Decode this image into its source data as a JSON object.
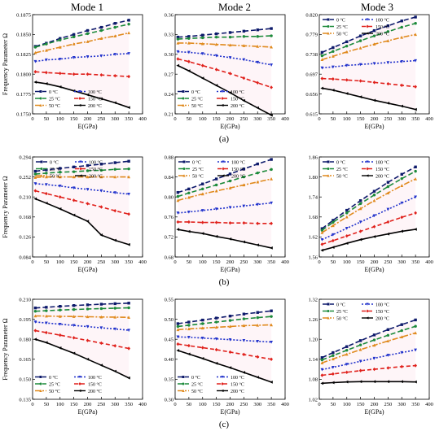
{
  "figure": {
    "mode_titles": [
      "Mode 1",
      "Mode 2",
      "Mode 3"
    ],
    "row_labels": [
      "(a)",
      "(b)",
      "(c)"
    ]
  },
  "chart_data": [
    {
      "id": "a1",
      "type": "line",
      "xlabel": "E(GPa)",
      "ylabel": "Frequency Parameter Ω",
      "xlim": [
        0,
        400
      ],
      "ylim": [
        0.175,
        0.1875
      ],
      "xticks": [
        0,
        50,
        100,
        150,
        200,
        250,
        300,
        350,
        400
      ],
      "yticks": [
        "0.1750",
        "0.1775",
        "0.1800",
        "0.1825",
        "0.1850",
        "0.1875"
      ],
      "grid": false,
      "legend": "bottom-left",
      "legend_cols": 2,
      "x": [
        10,
        50,
        100,
        150,
        200,
        250,
        300,
        350
      ],
      "series": [
        {
          "name": "0 °C",
          "values": [
            0.1835,
            0.1839,
            0.1845,
            0.185,
            0.1855,
            0.1859,
            0.1864,
            0.1868
          ]
        },
        {
          "name": "25 °C",
          "values": [
            0.1834,
            0.1838,
            0.1843,
            0.1847,
            0.1851,
            0.1855,
            0.1859,
            0.1863
          ]
        },
        {
          "name": "50 °C",
          "values": [
            0.1827,
            0.183,
            0.1834,
            0.1838,
            0.1841,
            0.1845,
            0.1848,
            0.1852
          ]
        },
        {
          "name": "100 °C",
          "values": [
            0.1816,
            0.1818,
            0.1819,
            0.1821,
            0.1822,
            0.1823,
            0.1825,
            0.1826
          ]
        },
        {
          "name": "150 °C",
          "values": [
            0.1803,
            0.1802,
            0.1801,
            0.18,
            0.18,
            0.1799,
            0.1798,
            0.1797
          ]
        },
        {
          "name": "200 °C",
          "values": [
            0.179,
            0.1788,
            0.1784,
            0.1779,
            0.1774,
            0.1769,
            0.1764,
            0.1758
          ]
        }
      ]
    },
    {
      "id": "a2",
      "type": "line",
      "xlabel": "E(GPa)",
      "ylabel": "",
      "xlim": [
        0,
        400
      ],
      "ylim": [
        0.21,
        0.36
      ],
      "xticks": [
        0,
        50,
        100,
        150,
        200,
        250,
        300,
        350,
        400
      ],
      "yticks": [
        "0.21",
        "0.24",
        "0.27",
        "0.30",
        "0.33",
        "0.36"
      ],
      "grid": false,
      "legend": "bottom-left",
      "legend_cols": 2,
      "x": [
        10,
        50,
        100,
        150,
        200,
        250,
        300,
        350
      ],
      "series": [
        {
          "name": "0 °C",
          "values": [
            0.326,
            0.327,
            0.329,
            0.331,
            0.333,
            0.335,
            0.337,
            0.339
          ]
        },
        {
          "name": "25 °C",
          "values": [
            0.323,
            0.324,
            0.325,
            0.326,
            0.326,
            0.327,
            0.327,
            0.328
          ]
        },
        {
          "name": "50 °C",
          "values": [
            0.317,
            0.317,
            0.316,
            0.315,
            0.314,
            0.313,
            0.312,
            0.311
          ]
        },
        {
          "name": "100 °C",
          "values": [
            0.304,
            0.303,
            0.301,
            0.298,
            0.295,
            0.292,
            0.288,
            0.284
          ]
        },
        {
          "name": "150 °C",
          "values": [
            0.293,
            0.289,
            0.283,
            0.277,
            0.271,
            0.264,
            0.257,
            0.25
          ]
        },
        {
          "name": "200 °C",
          "values": [
            0.283,
            0.275,
            0.264,
            0.253,
            0.242,
            0.23,
            0.219,
            0.208
          ]
        }
      ]
    },
    {
      "id": "a3",
      "type": "line",
      "xlabel": "E(GPa)",
      "ylabel": "",
      "xlim": [
        0,
        400
      ],
      "ylim": [
        0.615,
        0.82
      ],
      "xticks": [
        0,
        50,
        100,
        150,
        200,
        250,
        300,
        350,
        400
      ],
      "yticks": [
        "0.615",
        "0.656",
        "0.697",
        "0.738",
        "0.779",
        "0.820"
      ],
      "grid": false,
      "legend": "top-left",
      "legend_cols": 2,
      "x": [
        10,
        50,
        100,
        150,
        200,
        250,
        300,
        350
      ],
      "series": [
        {
          "name": "0 °C",
          "values": [
            0.742,
            0.752,
            0.764,
            0.776,
            0.787,
            0.797,
            0.807,
            0.815
          ]
        },
        {
          "name": "25 °C",
          "values": [
            0.735,
            0.744,
            0.755,
            0.766,
            0.776,
            0.785,
            0.794,
            0.802
          ]
        },
        {
          "name": "50 °C",
          "values": [
            0.727,
            0.734,
            0.743,
            0.751,
            0.759,
            0.766,
            0.773,
            0.779
          ]
        },
        {
          "name": "100 °C",
          "values": [
            0.71,
            0.712,
            0.715,
            0.717,
            0.719,
            0.721,
            0.723,
            0.725
          ]
        },
        {
          "name": "150 °C",
          "values": [
            0.688,
            0.687,
            0.685,
            0.683,
            0.68,
            0.677,
            0.674,
            0.671
          ]
        },
        {
          "name": "200 °C",
          "values": [
            0.668,
            0.664,
            0.657,
            0.65,
            0.643,
            0.637,
            0.631,
            0.624
          ]
        }
      ]
    },
    {
      "id": "b1",
      "type": "line",
      "xlabel": "E(GPa)",
      "ylabel": "Frequency Parameter Ω",
      "xlim": [
        0,
        400
      ],
      "ylim": [
        0.084,
        0.294
      ],
      "xticks": [
        0,
        50,
        100,
        150,
        200,
        250,
        300,
        350,
        400
      ],
      "yticks": [
        "0.084",
        "0.126",
        "0.168",
        "0.210",
        "0.252",
        "0.294"
      ],
      "grid": false,
      "legend": "top-right",
      "legend_cols": 2,
      "x": [
        10,
        50,
        100,
        150,
        200,
        250,
        300,
        350
      ],
      "series": [
        {
          "name": "0 °C",
          "values": [
            0.264,
            0.267,
            0.27,
            0.273,
            0.276,
            0.279,
            0.282,
            0.285
          ]
        },
        {
          "name": "25 °C",
          "values": [
            0.258,
            0.26,
            0.262,
            0.263,
            0.265,
            0.266,
            0.268,
            0.269
          ]
        },
        {
          "name": "50 °C",
          "values": [
            0.251,
            0.252,
            0.252,
            0.252,
            0.252,
            0.252,
            0.252,
            0.252
          ]
        },
        {
          "name": "100 °C",
          "values": [
            0.238,
            0.236,
            0.233,
            0.229,
            0.226,
            0.223,
            0.219,
            0.216
          ]
        },
        {
          "name": "150 °C",
          "values": [
            0.223,
            0.217,
            0.21,
            0.203,
            0.196,
            0.189,
            0.181,
            0.174
          ]
        },
        {
          "name": "200 °C",
          "values": [
            0.206,
            0.197,
            0.185,
            0.172,
            0.159,
            0.13,
            0.119,
            0.11
          ]
        }
      ]
    },
    {
      "id": "b2",
      "type": "line",
      "xlabel": "E(GPa)",
      "ylabel": "",
      "xlim": [
        0,
        400
      ],
      "ylim": [
        0.68,
        0.88
      ],
      "xticks": [
        0,
        50,
        100,
        150,
        200,
        250,
        300,
        350,
        400
      ],
      "yticks": [
        "0.68",
        "0.72",
        "0.76",
        "0.80",
        "0.84",
        "0.88"
      ],
      "grid": false,
      "legend": "top-left",
      "legend_cols": 2,
      "x": [
        10,
        50,
        100,
        150,
        200,
        250,
        300,
        350
      ],
      "series": [
        {
          "name": "0 °C",
          "values": [
            0.809,
            0.816,
            0.826,
            0.836,
            0.846,
            0.856,
            0.866,
            0.875
          ]
        },
        {
          "name": "25 °C",
          "values": [
            0.801,
            0.808,
            0.816,
            0.824,
            0.832,
            0.84,
            0.848,
            0.855
          ]
        },
        {
          "name": "50 °C",
          "values": [
            0.793,
            0.799,
            0.806,
            0.812,
            0.818,
            0.824,
            0.83,
            0.836
          ]
        },
        {
          "name": "100 °C",
          "values": [
            0.768,
            0.77,
            0.773,
            0.776,
            0.779,
            0.782,
            0.785,
            0.788
          ]
        },
        {
          "name": "150 °C",
          "values": [
            0.75,
            0.75,
            0.749,
            0.749,
            0.748,
            0.748,
            0.747,
            0.747
          ]
        },
        {
          "name": "200 °C",
          "values": [
            0.735,
            0.731,
            0.727,
            0.721,
            0.716,
            0.71,
            0.704,
            0.698
          ]
        }
      ]
    },
    {
      "id": "b3",
      "type": "line",
      "xlabel": "E(GPa)",
      "ylabel": "",
      "xlim": [
        0,
        400
      ],
      "ylim": [
        1.56,
        1.86
      ],
      "xticks": [
        0,
        50,
        100,
        150,
        200,
        250,
        300,
        350,
        400
      ],
      "yticks": [
        "1.56",
        "1.62",
        "1.68",
        "1.74",
        "1.80",
        "1.86"
      ],
      "grid": false,
      "legend": "top-left",
      "legend_cols": 2,
      "x": [
        10,
        50,
        100,
        150,
        200,
        250,
        300,
        350
      ],
      "series": [
        {
          "name": "0 °C",
          "values": [
            1.645,
            1.67,
            1.7,
            1.729,
            1.757,
            1.784,
            1.808,
            1.83
          ]
        },
        {
          "name": "25 °C",
          "values": [
            1.64,
            1.664,
            1.692,
            1.72,
            1.746,
            1.771,
            1.795,
            1.817
          ]
        },
        {
          "name": "50 °C",
          "values": [
            1.633,
            1.654,
            1.68,
            1.705,
            1.729,
            1.752,
            1.774,
            1.794
          ]
        },
        {
          "name": "100 °C",
          "values": [
            1.612,
            1.627,
            1.646,
            1.665,
            1.684,
            1.703,
            1.722,
            1.74
          ]
        },
        {
          "name": "150 °C",
          "values": [
            1.598,
            1.609,
            1.623,
            1.637,
            1.651,
            1.665,
            1.679,
            1.692
          ]
        },
        {
          "name": "200 °C",
          "values": [
            1.58,
            1.589,
            1.601,
            1.612,
            1.621,
            1.629,
            1.637,
            1.643
          ]
        }
      ]
    },
    {
      "id": "c1",
      "type": "line",
      "xlabel": "E(GPa)",
      "ylabel": "Frequency Parameter Ω",
      "xlim": [
        0,
        400
      ],
      "ylim": [
        0.135,
        0.21
      ],
      "xticks": [
        0,
        50,
        100,
        150,
        200,
        250,
        300,
        350,
        400
      ],
      "yticks": [
        "0.135",
        "0.150",
        "0.165",
        "0.180",
        "0.195",
        "0.210"
      ],
      "grid": false,
      "legend": "bottom-left",
      "legend_cols": 2,
      "x": [
        10,
        50,
        100,
        150,
        200,
        250,
        300,
        350
      ],
      "series": [
        {
          "name": "0 °C",
          "values": [
            0.2035,
            0.204,
            0.2047,
            0.2053,
            0.2058,
            0.2063,
            0.2067,
            0.2071
          ]
        },
        {
          "name": "25 °C",
          "values": [
            0.201,
            0.2014,
            0.2019,
            0.2023,
            0.2027,
            0.203,
            0.2033,
            0.2036
          ]
        },
        {
          "name": "50 °C",
          "values": [
            0.1975,
            0.1974,
            0.1972,
            0.1971,
            0.1969,
            0.1967,
            0.1966,
            0.1964
          ]
        },
        {
          "name": "100 °C",
          "values": [
            0.193,
            0.1922,
            0.1913,
            0.1904,
            0.1895,
            0.1886,
            0.1877,
            0.1868
          ]
        },
        {
          "name": "150 °C",
          "values": [
            0.1865,
            0.185,
            0.1831,
            0.1811,
            0.1791,
            0.1771,
            0.1751,
            0.1731
          ]
        },
        {
          "name": "200 °C",
          "values": [
            0.18,
            0.1775,
            0.1735,
            0.1695,
            0.165,
            0.1605,
            0.156,
            0.151
          ]
        }
      ]
    },
    {
      "id": "c2",
      "type": "line",
      "xlabel": "E(GPa)",
      "ylabel": "",
      "xlim": [
        0,
        400
      ],
      "ylim": [
        0.3,
        0.55
      ],
      "xticks": [
        0,
        50,
        100,
        150,
        200,
        250,
        300,
        350,
        400
      ],
      "yticks": [
        "0.30",
        "0.35",
        "0.40",
        "0.45",
        "0.50",
        "0.55"
      ],
      "grid": false,
      "legend": "bottom-left",
      "legend_cols": 2,
      "x": [
        10,
        50,
        100,
        150,
        200,
        250,
        300,
        350
      ],
      "series": [
        {
          "name": "0 °C",
          "values": [
            0.489,
            0.493,
            0.498,
            0.503,
            0.508,
            0.513,
            0.517,
            0.521
          ]
        },
        {
          "name": "25 °C",
          "values": [
            0.482,
            0.485,
            0.489,
            0.493,
            0.497,
            0.501,
            0.504,
            0.507
          ]
        },
        {
          "name": "50 °C",
          "values": [
            0.474,
            0.476,
            0.478,
            0.48,
            0.482,
            0.484,
            0.485,
            0.486
          ]
        },
        {
          "name": "100 °C",
          "values": [
            0.456,
            0.455,
            0.453,
            0.451,
            0.449,
            0.447,
            0.445,
            0.443
          ]
        },
        {
          "name": "150 °C",
          "values": [
            0.438,
            0.434,
            0.429,
            0.424,
            0.418,
            0.412,
            0.406,
            0.4
          ]
        },
        {
          "name": "200 °C",
          "values": [
            0.422,
            0.413,
            0.402,
            0.39,
            0.379,
            0.367,
            0.355,
            0.343
          ]
        }
      ]
    },
    {
      "id": "c3",
      "type": "line",
      "xlabel": "E(GPa)",
      "ylabel": "",
      "xlim": [
        0,
        400
      ],
      "ylim": [
        1.02,
        1.32
      ],
      "xticks": [
        0,
        50,
        100,
        150,
        200,
        250,
        300,
        350,
        400
      ],
      "yticks": [
        "1.02",
        "1.08",
        "1.14",
        "1.20",
        "1.26",
        "1.32"
      ],
      "grid": false,
      "legend": "top-left",
      "legend_cols": 2,
      "x": [
        10,
        50,
        100,
        150,
        200,
        250,
        300,
        350
      ],
      "series": [
        {
          "name": "0 °C",
          "values": [
            1.145,
            1.16,
            1.178,
            1.196,
            1.213,
            1.229,
            1.244,
            1.258
          ]
        },
        {
          "name": "25 °C",
          "values": [
            1.138,
            1.151,
            1.167,
            1.183,
            1.198,
            1.212,
            1.226,
            1.239
          ]
        },
        {
          "name": "50 °C",
          "values": [
            1.129,
            1.141,
            1.155,
            1.169,
            1.182,
            1.195,
            1.207,
            1.219
          ]
        },
        {
          "name": "100 °C",
          "values": [
            1.109,
            1.116,
            1.125,
            1.134,
            1.143,
            1.152,
            1.16,
            1.168
          ]
        },
        {
          "name": "150 °C",
          "values": [
            1.092,
            1.096,
            1.101,
            1.106,
            1.11,
            1.114,
            1.118,
            1.121
          ]
        },
        {
          "name": "200 °C",
          "values": [
            1.068,
            1.07,
            1.072,
            1.073,
            1.073,
            1.073,
            1.073,
            1.072
          ]
        }
      ]
    }
  ],
  "series_styles": [
    {
      "color": "#0d1a6b",
      "dash": "6,3",
      "marker": "square"
    },
    {
      "color": "#1c8a3a",
      "dash": "6,3",
      "marker": "circle"
    },
    {
      "color": "#e08a1e",
      "dash": "7,2,2,2",
      "marker": "triangle-up"
    },
    {
      "color": "#2233cc",
      "dash": "2,2",
      "marker": "triangle-down"
    },
    {
      "color": "#e0201b",
      "dash": "5,3",
      "marker": "diamond"
    },
    {
      "color": "#000000",
      "dash": "",
      "marker": "triangle-left"
    }
  ]
}
